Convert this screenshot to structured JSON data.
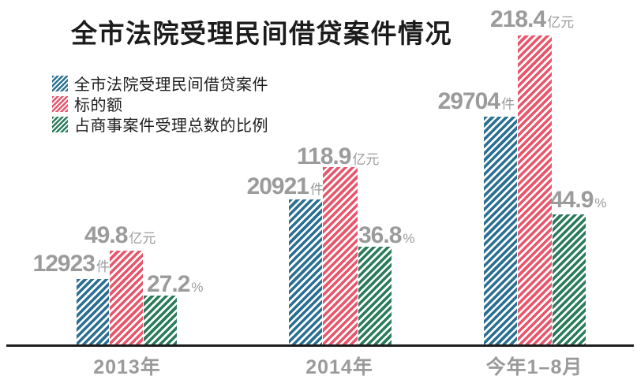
{
  "title": "全市法院受理民间借贷案件情况",
  "legend": {
    "items": [
      {
        "label": "全市法院受理民间借贷案件",
        "color": "#2b7093",
        "pattern": "diagonal-stripes"
      },
      {
        "label": "标的额",
        "color": "#e9566b",
        "pattern": "diagonal-stripes"
      },
      {
        "label": "占商事案件受理总数的比例",
        "color": "#2b7c5c",
        "pattern": "diagonal-stripes"
      }
    ]
  },
  "chart_data": {
    "type": "bar",
    "title": "全市法院受理民间借贷案件情况",
    "categories": [
      "2013年",
      "2014年",
      "今年1–8月"
    ],
    "series": [
      {
        "name": "全市法院受理民间借贷案件",
        "unit": "件",
        "color": "#2b7093",
        "values": [
          12923,
          20921,
          29704
        ]
      },
      {
        "name": "标的额",
        "unit": "亿元",
        "color": "#e9566b",
        "values": [
          49.8,
          118.9,
          218.4
        ]
      },
      {
        "name": "占商事案件受理总数的比例",
        "unit": "%",
        "color": "#2b7c5c",
        "values": [
          27.2,
          36.8,
          44.9
        ]
      }
    ],
    "legend_position": "top-left",
    "grid": false,
    "axis": "x-baseline-only",
    "value_labels": "above-bars",
    "value_label_color": "#9b9b9b",
    "bars_to_scale": false
  }
}
